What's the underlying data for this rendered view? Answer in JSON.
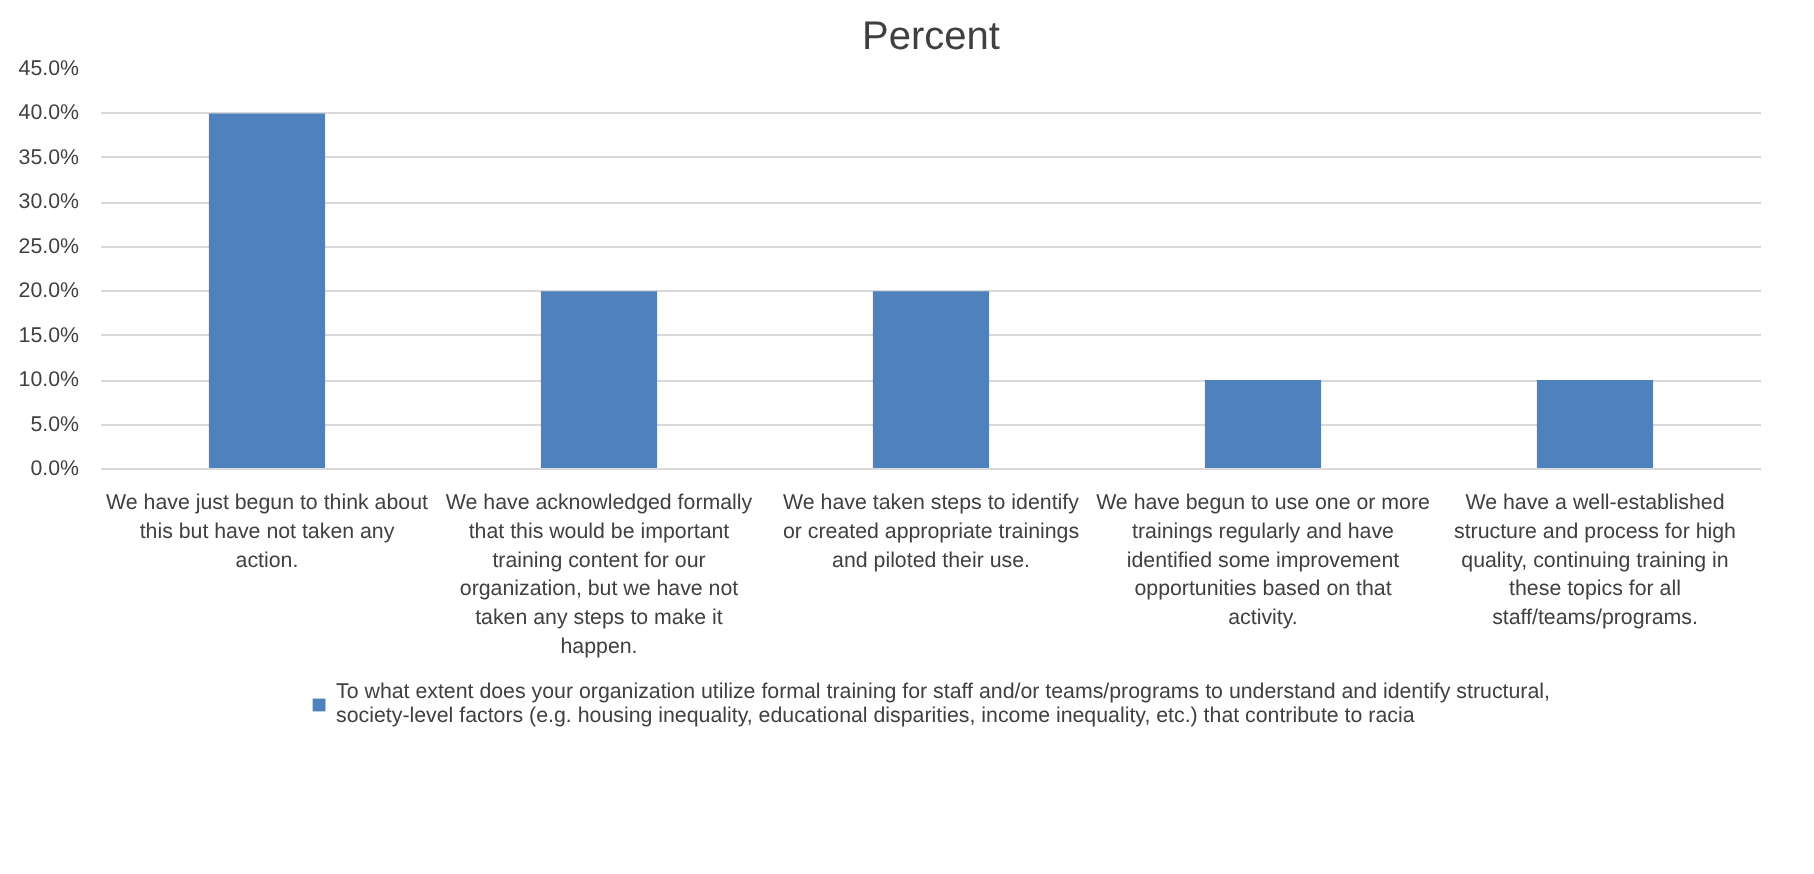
{
  "chart_data": {
    "type": "bar",
    "title": "Percent",
    "categories": [
      "We have just begun to think about this but have not taken any action.",
      "We have acknowledged formally that this would be important training content for our organization, but we have not taken any steps to make it happen.",
      "We have taken steps to identify or created appropriate trainings and piloted their use.",
      "We have begun to use one or more trainings regularly and have identified some improvement opportunities based on that activity.",
      "We have a well-established structure and process for high quality, continuing training in these topics for all staff/teams/programs."
    ],
    "series": [
      {
        "name": "To what extent does your organization utilize formal training for staff and/or teams/programs to understand and identify structural, society-level factors (e.g. housing inequality, educational disparities, income inequality, etc.) that contribute to racia",
        "color": "#4f81bd",
        "values": [
          40,
          20,
          20,
          10,
          10
        ]
      }
    ],
    "ylim": [
      0,
      45
    ],
    "yticks": [
      {
        "value": 0,
        "label": "0.0%"
      },
      {
        "value": 5,
        "label": "5.0%"
      },
      {
        "value": 10,
        "label": "10.0%"
      },
      {
        "value": 15,
        "label": "15.0%"
      },
      {
        "value": 20,
        "label": "20.0%"
      },
      {
        "value": 25,
        "label": "25.0%"
      },
      {
        "value": 30,
        "label": "30.0%"
      },
      {
        "value": 35,
        "label": "35.0%"
      },
      {
        "value": 40,
        "label": "40.0%"
      },
      {
        "value": 45,
        "label": "45.0%"
      }
    ],
    "grid": "y",
    "legend": "bottom"
  }
}
